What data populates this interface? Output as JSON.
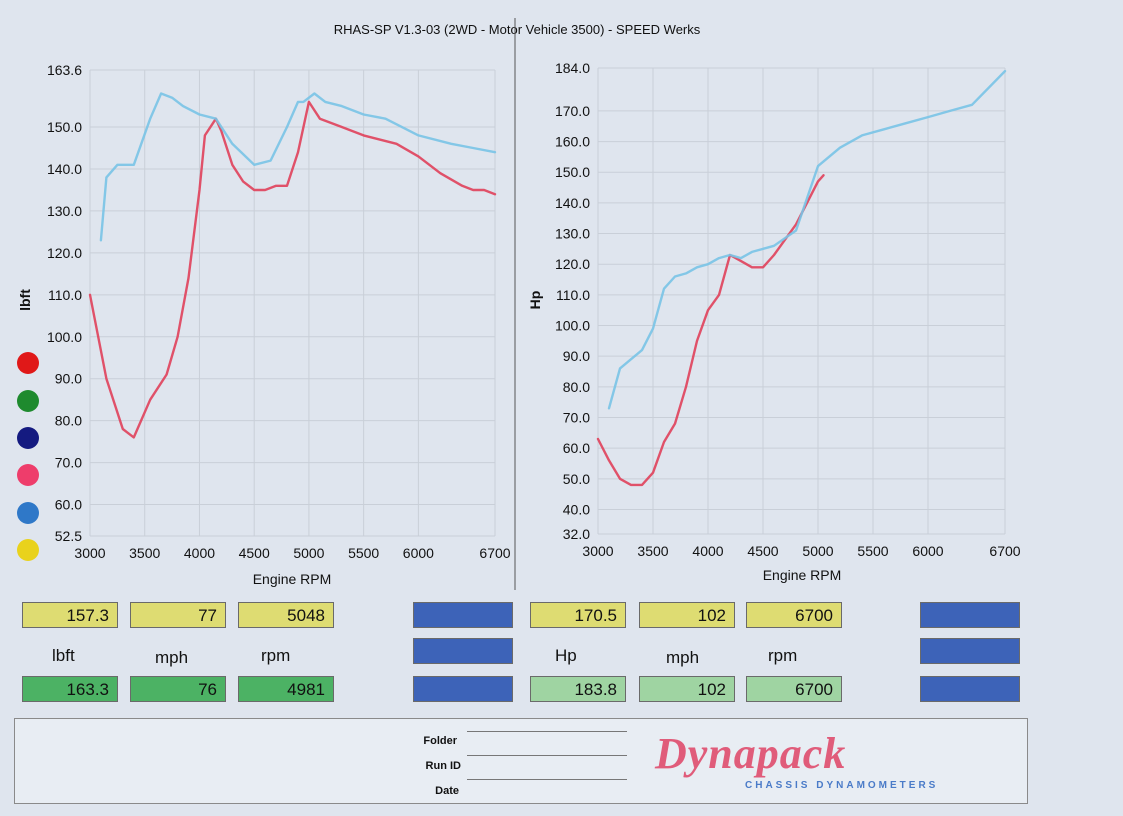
{
  "header": {
    "title": "RHAS-SP V1.3-03  (2WD - Motor Vehicle 3500) - SPEED Werks"
  },
  "colors": {
    "run1": "#e0405a",
    "run2": "#79c3e6",
    "dots": [
      "#e01818",
      "#1e8a2e",
      "#141a80",
      "#ee3d6b",
      "#2f78c8",
      "#e9d21c"
    ]
  },
  "chart_data": [
    {
      "type": "line",
      "title": "",
      "xlabel": "Engine RPM",
      "ylabel": "lbft",
      "xlim": [
        3000,
        6700
      ],
      "ylim": [
        52.5,
        163.6
      ],
      "x_ticks": [
        "3000",
        "3500",
        "4000",
        "4500",
        "5000",
        "5500",
        "6000",
        "6700"
      ],
      "y_ticks": [
        "163.6",
        "150.0",
        "140.0",
        "130.0",
        "120.0",
        "110.0",
        "100.0",
        "90.0",
        "80.0",
        "70.0",
        "60.0",
        "52.5"
      ],
      "series": [
        {
          "x": [
            3000,
            3150,
            3300,
            3400,
            3550,
            3700,
            3800,
            3900,
            4000,
            4050,
            4150,
            4200,
            4300,
            4400,
            4500,
            4600,
            4700,
            4800,
            4900,
            5000,
            5100,
            5300,
            5500,
            5800,
            6000,
            6200,
            6400,
            6500,
            6600,
            6700
          ],
          "y": [
            110,
            90,
            78,
            76,
            85,
            91,
            100,
            114,
            135,
            148,
            152,
            149,
            141,
            137,
            135,
            135,
            136,
            136,
            144,
            156,
            152,
            150,
            148,
            146,
            143,
            139,
            136,
            135,
            135,
            134
          ]
        },
        {
          "x": [
            3100,
            3150,
            3250,
            3400,
            3550,
            3650,
            3750,
            3850,
            4000,
            4150,
            4300,
            4500,
            4650,
            4800,
            4900,
            4950,
            5050,
            5150,
            5300,
            5500,
            5700,
            6000,
            6300,
            6500,
            6700
          ],
          "y": [
            123,
            138,
            141,
            141,
            152,
            158,
            157,
            155,
            153,
            152,
            146,
            141,
            142,
            150,
            156,
            156,
            158,
            156,
            155,
            153,
            152,
            148,
            146,
            145,
            144
          ]
        }
      ]
    },
    {
      "type": "line",
      "title": "",
      "xlabel": "Engine RPM",
      "ylabel": "Hp",
      "xlim": [
        3000,
        6700
      ],
      "ylim": [
        32.0,
        184.0
      ],
      "x_ticks": [
        "3000",
        "3500",
        "4000",
        "4500",
        "5000",
        "5500",
        "6000",
        "6700"
      ],
      "y_ticks": [
        "184.0",
        "170.0",
        "160.0",
        "150.0",
        "140.0",
        "130.0",
        "120.0",
        "110.0",
        "100.0",
        "90.0",
        "80.0",
        "70.0",
        "60.0",
        "50.0",
        "40.0",
        "32.0"
      ],
      "series": [
        {
          "x": [
            3000,
            3100,
            3200,
            3300,
            3400,
            3500,
            3600,
            3700,
            3800,
            3900,
            4000,
            4100,
            4200,
            4300,
            4400,
            4500,
            4600,
            4700,
            4800,
            4900,
            5000,
            5050
          ],
          "y": [
            63,
            56,
            50,
            48,
            48,
            52,
            62,
            68,
            80,
            95,
            105,
            110,
            123,
            121,
            119,
            119,
            123,
            128,
            133,
            140,
            147,
            149
          ]
        },
        {
          "x": [
            3100,
            3200,
            3400,
            3500,
            3600,
            3700,
            3800,
            3900,
            4000,
            4100,
            4200,
            4300,
            4400,
            4600,
            4800,
            5000,
            5200,
            5400,
            5600,
            5800,
            6000,
            6200,
            6400,
            6700
          ],
          "y": [
            73,
            86,
            92,
            99,
            112,
            116,
            117,
            119,
            120,
            122,
            123,
            122,
            124,
            126,
            131,
            152,
            158,
            162,
            164,
            166,
            168,
            170,
            172,
            183
          ]
        }
      ]
    }
  ],
  "results": {
    "torque_run1": {
      "lbft": "157.3",
      "mph": "77",
      "rpm": "5048"
    },
    "torque_run2": {
      "lbft": "163.3",
      "mph": "76",
      "rpm": "4981"
    },
    "torque_labels": {
      "lbft": "lbft",
      "mph": "mph",
      "rpm": "rpm"
    },
    "hp_run1": {
      "hp": "170.5",
      "mph": "102",
      "rpm": "6700"
    },
    "hp_run2": {
      "hp": "183.8",
      "mph": "102",
      "rpm": "6700"
    },
    "hp_labels": {
      "hp": "Hp",
      "mph": "mph",
      "rpm": "rpm"
    }
  },
  "footer": {
    "folder_label": "Folder",
    "runid_label": "Run ID",
    "date_label": "Date",
    "logo_text": "Dynapack",
    "logo_sub": "CHASSIS DYNAMOMETERS"
  }
}
